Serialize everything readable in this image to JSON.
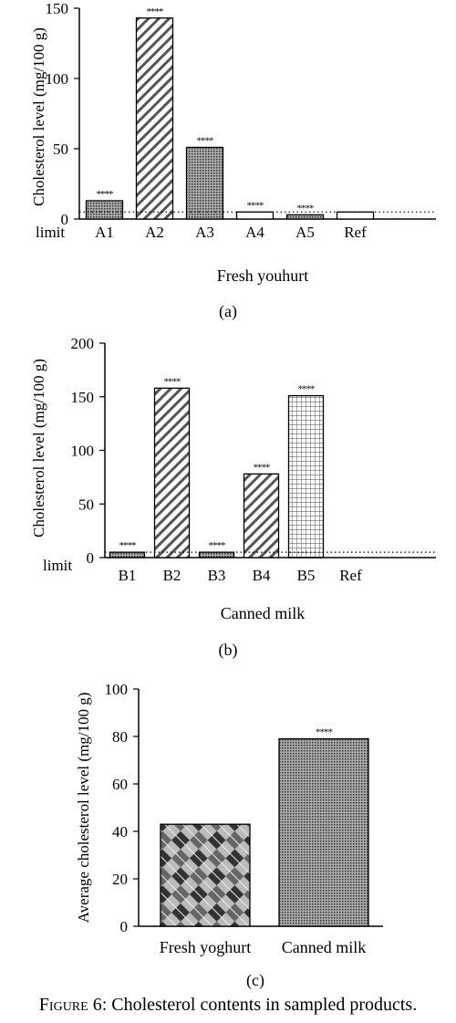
{
  "figure": {
    "caption_label": "Figure 6:",
    "caption_text": "Cholesterol contents in sampled products."
  },
  "chart_data": [
    {
      "type": "bar",
      "panel_label": "(a)",
      "ylabel": "Cholesterol level (mg/100 g)",
      "xlabel": "Fresh youhurt",
      "categories": [
        "A1",
        "A2",
        "A3",
        "A4",
        "A5",
        "Ref"
      ],
      "values": [
        13,
        143,
        51,
        5,
        3,
        5
      ],
      "significance": [
        "****",
        "****",
        "****",
        "****",
        "****",
        ""
      ],
      "patterns": [
        "dots",
        "diag-dark",
        "dots",
        "plain",
        "dots",
        "plain"
      ],
      "ylim": [
        0,
        150
      ],
      "yticks": [
        0,
        50,
        100,
        150
      ],
      "ytick_labels": [
        "0",
        "50",
        "100",
        "150"
      ],
      "limit_value": 5,
      "limit_label": "limit"
    },
    {
      "type": "bar",
      "panel_label": "(b)",
      "ylabel": "Cholesterol level (mg/100 g)",
      "xlabel": "Canned milk",
      "categories": [
        "B1",
        "B2",
        "B3",
        "B4",
        "B5",
        "Ref"
      ],
      "values": [
        5,
        158,
        5,
        78,
        151,
        0
      ],
      "significance": [
        "****",
        "****",
        "****",
        "****",
        "****",
        ""
      ],
      "patterns": [
        "dots",
        "diag-dark",
        "dots",
        "diag-dark",
        "grid",
        "plain"
      ],
      "ylim": [
        0,
        200
      ],
      "yticks": [
        0,
        50,
        100,
        150,
        200
      ],
      "ytick_labels": [
        "0",
        "50",
        "100",
        "150",
        "200"
      ],
      "limit_value": 5,
      "limit_label": "limit"
    },
    {
      "type": "bar",
      "panel_label": "(c)",
      "ylabel": "Average cholesterol level (mg/100 g)",
      "xlabel": "",
      "categories": [
        "Fresh yoghurt",
        "Canned milk"
      ],
      "values": [
        43,
        79
      ],
      "significance": [
        "",
        "****"
      ],
      "patterns": [
        "checker",
        "dots"
      ],
      "ylim": [
        0,
        100
      ],
      "yticks": [
        0,
        20,
        40,
        60,
        80,
        100
      ],
      "ytick_labels": [
        "0",
        "20",
        "40",
        "60",
        "80",
        "100"
      ]
    }
  ]
}
